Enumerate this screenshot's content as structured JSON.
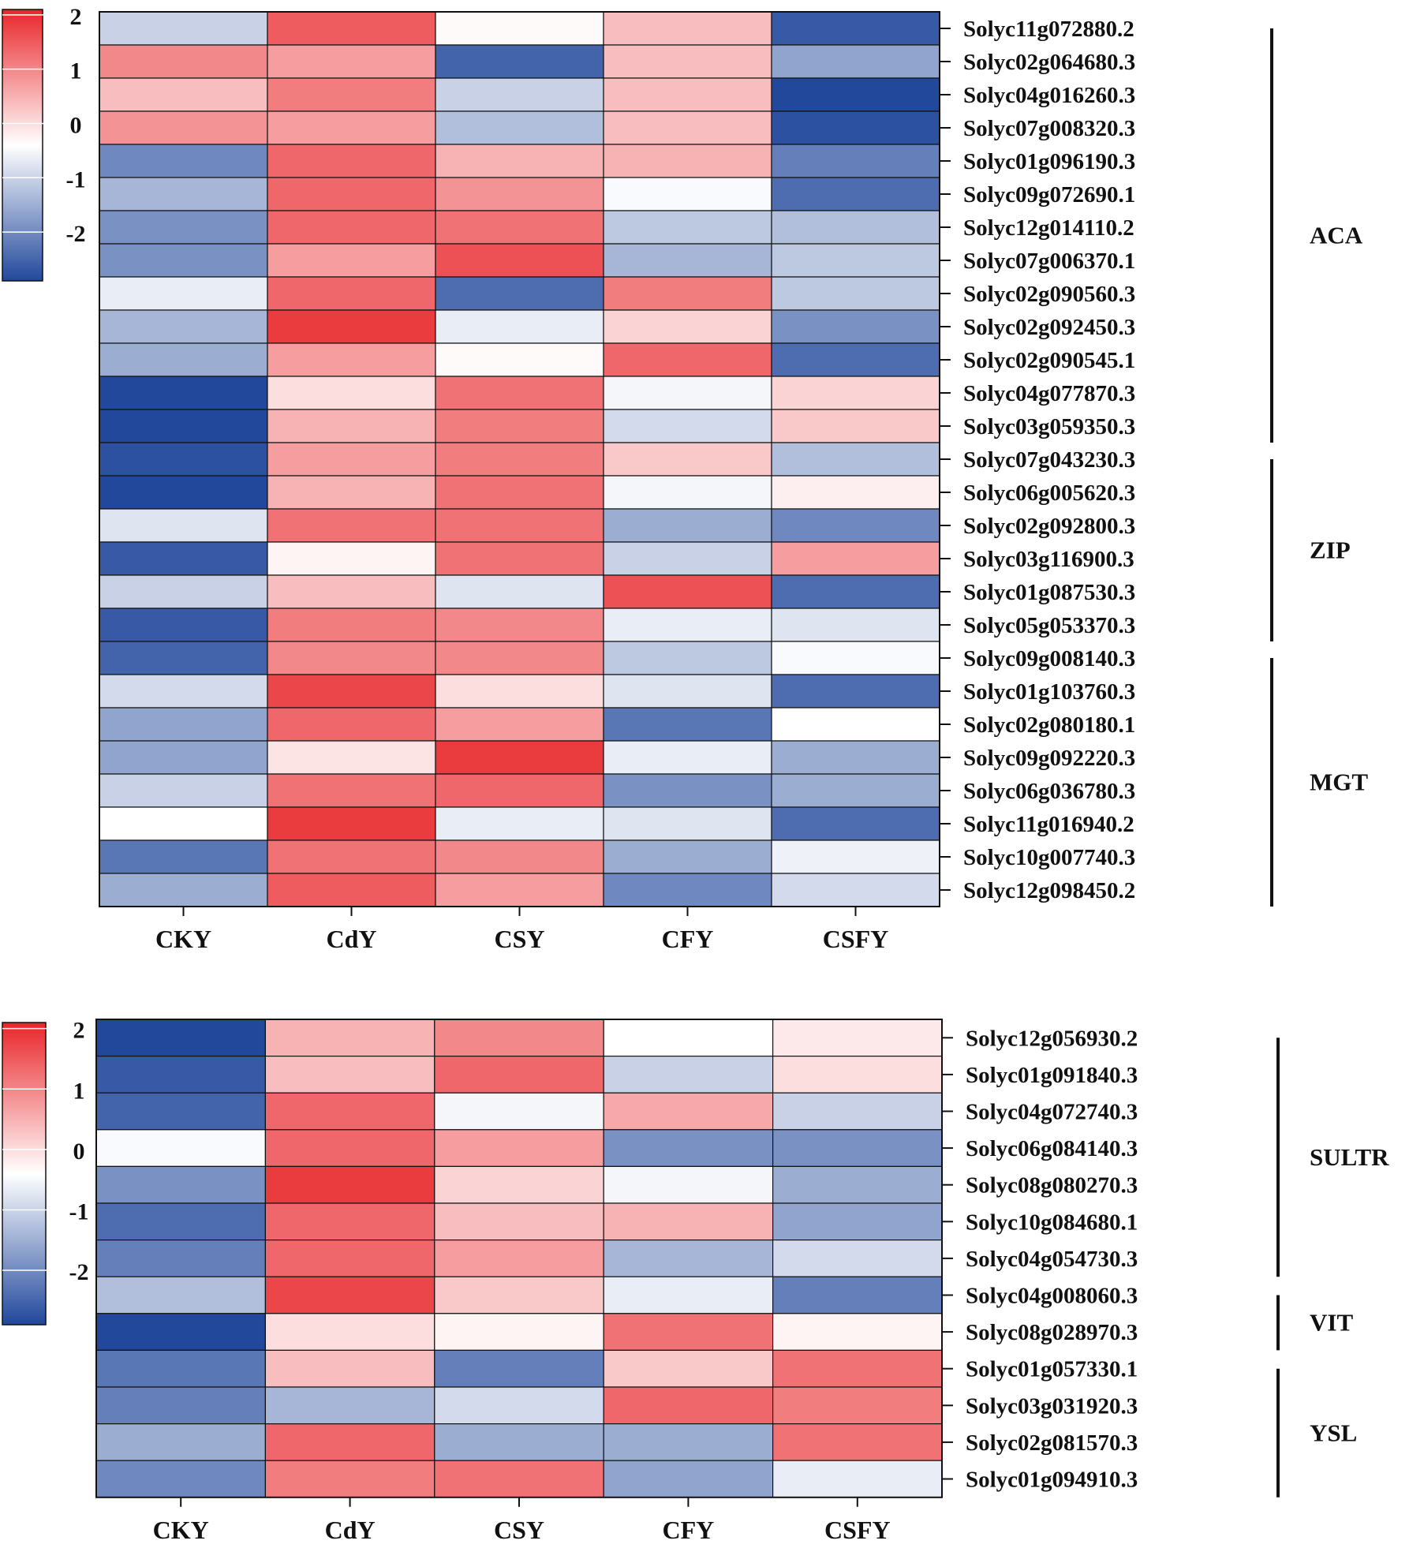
{
  "chart_data": [
    {
      "type": "heatmap",
      "columns": [
        "CKY",
        "CdY",
        "CSY",
        "CFY",
        "CSFY"
      ],
      "rows": [
        "Solyc11g072880.2",
        "Solyc02g064680.3",
        "Solyc04g016260.3",
        "Solyc07g008320.3",
        "Solyc01g096190.3",
        "Solyc09g072690.1",
        "Solyc12g014110.2",
        "Solyc07g006370.1",
        "Solyc02g090560.3",
        "Solyc02g092450.3",
        "Solyc02g090545.1",
        "Solyc04g077870.3",
        "Solyc03g059350.3",
        "Solyc07g043230.3",
        "Solyc06g005620.3",
        "Solyc02g092800.3",
        "Solyc03g116900.3",
        "Solyc01g087530.3",
        "Solyc05g053370.3",
        "Solyc09g008140.3",
        "Solyc01g103760.3",
        "Solyc02g080180.1",
        "Solyc09g092220.3",
        "Solyc06g036780.3",
        "Solyc11g016940.2",
        "Solyc10g007740.3",
        "Solyc12g098450.2"
      ],
      "values": [
        [
          -0.5,
          1.5,
          0.05,
          0.6,
          -1.8
        ],
        [
          1.1,
          0.9,
          -1.7,
          0.6,
          -1.0
        ],
        [
          0.6,
          1.2,
          -0.5,
          0.6,
          -2.0
        ],
        [
          1.0,
          0.9,
          -0.7,
          0.6,
          -1.9
        ],
        [
          -1.3,
          1.4,
          0.7,
          0.7,
          -1.4
        ],
        [
          -0.8,
          1.4,
          1.0,
          -0.05,
          -1.6
        ],
        [
          -1.2,
          1.4,
          1.3,
          -0.6,
          -0.7
        ],
        [
          -1.2,
          0.9,
          1.6,
          -0.8,
          -0.6
        ],
        [
          -0.2,
          1.4,
          -1.6,
          1.2,
          -0.6
        ],
        [
          -0.8,
          1.8,
          -0.2,
          0.4,
          -1.2
        ],
        [
          -0.9,
          0.9,
          0.05,
          1.4,
          -1.6
        ],
        [
          -2.0,
          0.3,
          1.3,
          -0.1,
          0.4
        ],
        [
          -2.0,
          0.7,
          1.2,
          -0.4,
          0.5
        ],
        [
          -1.9,
          0.9,
          1.2,
          0.5,
          -0.7
        ],
        [
          -2.0,
          0.7,
          1.3,
          -0.1,
          0.15
        ],
        [
          -0.3,
          1.3,
          1.3,
          -0.9,
          -1.3
        ],
        [
          -1.8,
          0.1,
          1.3,
          -0.5,
          0.9
        ],
        [
          -0.5,
          0.6,
          -0.3,
          1.6,
          -1.6
        ],
        [
          -1.8,
          1.2,
          1.1,
          -0.2,
          -0.3
        ],
        [
          -1.7,
          1.1,
          1.1,
          -0.6,
          -0.05
        ],
        [
          -0.4,
          1.7,
          0.3,
          -0.3,
          -1.6
        ],
        [
          -1.0,
          1.4,
          0.9,
          -1.5,
          0.0
        ],
        [
          -1.0,
          0.25,
          1.8,
          -0.2,
          -0.9
        ],
        [
          -0.5,
          1.3,
          1.4,
          -1.2,
          -0.9
        ],
        [
          0.0,
          1.8,
          -0.2,
          -0.3,
          -1.6
        ],
        [
          -1.5,
          1.3,
          1.1,
          -0.9,
          -0.15
        ],
        [
          -0.9,
          1.5,
          0.9,
          -1.3,
          -0.4
        ]
      ],
      "groups": [
        {
          "name": "ACA",
          "start": 0,
          "end": 12
        },
        {
          "name": "ZIP",
          "start": 13,
          "end": 18
        },
        {
          "name": "MGT",
          "start": 19,
          "end": 26
        }
      ],
      "colorbar": {
        "ticks": [
          "2",
          "1",
          "0",
          "-1",
          "-2"
        ],
        "range": [
          -2,
          2
        ]
      },
      "colors": {
        "high": "#e8262a",
        "mid": "#ffffff",
        "low": "#22489c"
      }
    },
    {
      "type": "heatmap",
      "columns": [
        "CKY",
        "CdY",
        "CSY",
        "CFY",
        "CSFY"
      ],
      "rows": [
        "Solyc12g056930.2",
        "Solyc01g091840.3",
        "Solyc04g072740.3",
        "Solyc06g084140.3",
        "Solyc08g080270.3",
        "Solyc10g084680.1",
        "Solyc04g054730.3",
        "Solyc04g008060.3",
        "Solyc08g028970.3",
        "Solyc01g057330.1",
        "Solyc03g031920.3",
        "Solyc02g081570.3",
        "Solyc01g094910.3"
      ],
      "values": [
        [
          -2.0,
          0.7,
          1.1,
          0.0,
          0.2
        ],
        [
          -1.8,
          0.6,
          1.4,
          -0.5,
          0.3
        ],
        [
          -1.7,
          1.4,
          -0.1,
          0.8,
          -0.5
        ],
        [
          -0.05,
          1.4,
          0.9,
          -1.2,
          -1.2
        ],
        [
          -1.2,
          1.8,
          0.4,
          -0.1,
          -0.9
        ],
        [
          -1.6,
          1.4,
          0.6,
          0.7,
          -1.0
        ],
        [
          -1.4,
          1.4,
          0.9,
          -0.8,
          -0.4
        ],
        [
          -0.7,
          1.7,
          0.5,
          -0.2,
          -1.4
        ],
        [
          -2.0,
          0.3,
          0.1,
          1.3,
          0.1
        ],
        [
          -1.5,
          0.6,
          -1.4,
          0.5,
          1.3
        ],
        [
          -1.4,
          -0.8,
          -0.4,
          1.4,
          1.2
        ],
        [
          -0.9,
          1.4,
          -0.9,
          -0.9,
          1.3
        ],
        [
          -1.3,
          1.2,
          1.3,
          -1.0,
          -0.2
        ]
      ],
      "groups": [
        {
          "name": "SULTR",
          "start": 0,
          "end": 6
        },
        {
          "name": "VIT",
          "start": 7,
          "end": 8
        },
        {
          "name": "YSL",
          "start": 9,
          "end": 12
        }
      ],
      "colorbar": {
        "ticks": [
          "2",
          "1",
          "0",
          "-1",
          "-2"
        ],
        "range": [
          -2,
          2
        ]
      },
      "colors": {
        "high": "#e8262a",
        "mid": "#ffffff",
        "low": "#22489c"
      }
    }
  ]
}
